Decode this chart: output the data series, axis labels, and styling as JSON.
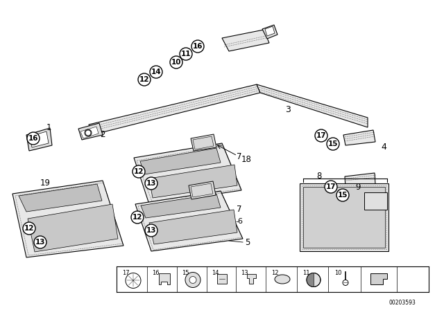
{
  "bg_color": "#ffffff",
  "lc": "#000000",
  "diagram_id": "00203593",
  "hatch_color": "#aaaaaa"
}
